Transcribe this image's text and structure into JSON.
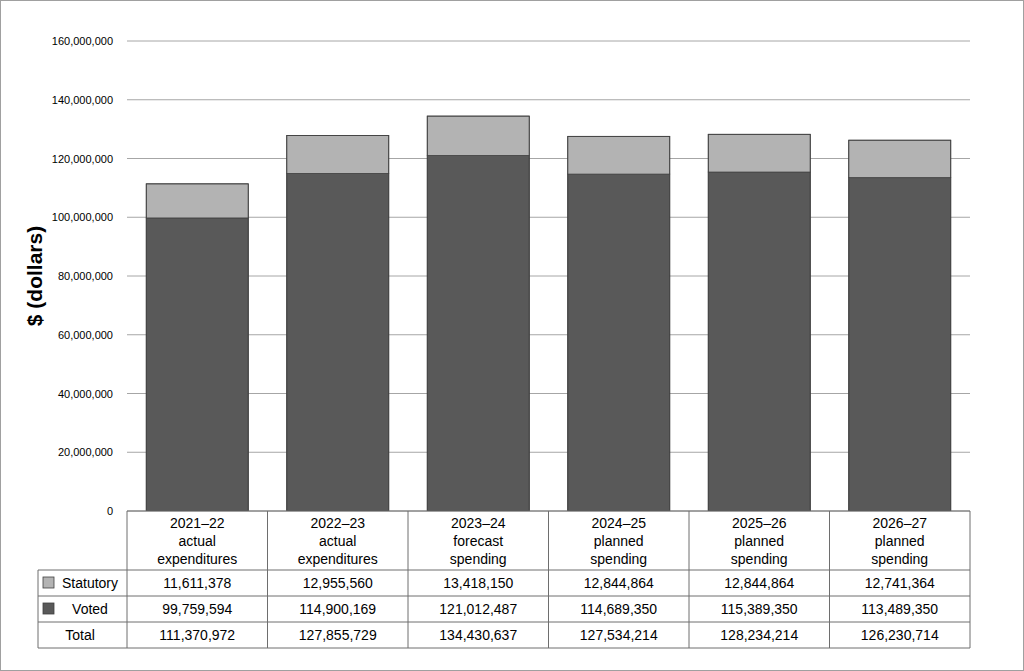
{
  "chart_data": {
    "type": "bar",
    "stacked": true,
    "grid": true,
    "legend": "bottom",
    "y_label": "$ (dollars)",
    "categories": [
      "2021–22 actual expenditures",
      "2022–23 actual expenditures",
      "2023–24 forecast spending",
      "2024–25 planned spending",
      "2025–26 planned spending",
      "2026–27 planned spending"
    ],
    "series": [
      {
        "name": "Statutory",
        "color": "#b3b3b3",
        "values": [
          11611378,
          12955560,
          13418150,
          12844864,
          12844864,
          12741364
        ],
        "value_labels": [
          "11,611,378",
          "12,955,560",
          "13,418,150",
          "12,844,864",
          "12,844,864",
          "12,741,364"
        ]
      },
      {
        "name": "Voted",
        "color": "#595959",
        "values": [
          99759594,
          114900169,
          121012487,
          114689350,
          115389350,
          113489350
        ],
        "value_labels": [
          "99,759,594",
          "114,900,169",
          "121,012,487",
          "114,689,350",
          "115,389,350",
          "113,489,350"
        ]
      }
    ],
    "totals": {
      "name": "Total",
      "values": [
        111370972,
        127855729,
        134430637,
        127534214,
        128234214,
        126230714
      ],
      "value_labels": [
        "111,370,972",
        "127,855,729",
        "134,430,637",
        "127,534,214",
        "128,234,214",
        "126,230,714"
      ]
    },
    "ylim": [
      0,
      160000000
    ],
    "yticks": [
      0,
      {
        "value": 20000000,
        "label": "20,000,000"
      },
      {
        "value": 40000000,
        "label": "40,000,000"
      },
      {
        "value": 60000000,
        "label": "60,000,000"
      },
      {
        "value": 80000000,
        "label": "80,000,000"
      },
      {
        "value": 100000000,
        "label": "100,000,000"
      },
      {
        "value": 120000000,
        "label": "120,000,000"
      },
      {
        "value": 140000000,
        "label": "140,000,000"
      },
      {
        "value": 160000000,
        "label": "160,000,000"
      }
    ]
  }
}
